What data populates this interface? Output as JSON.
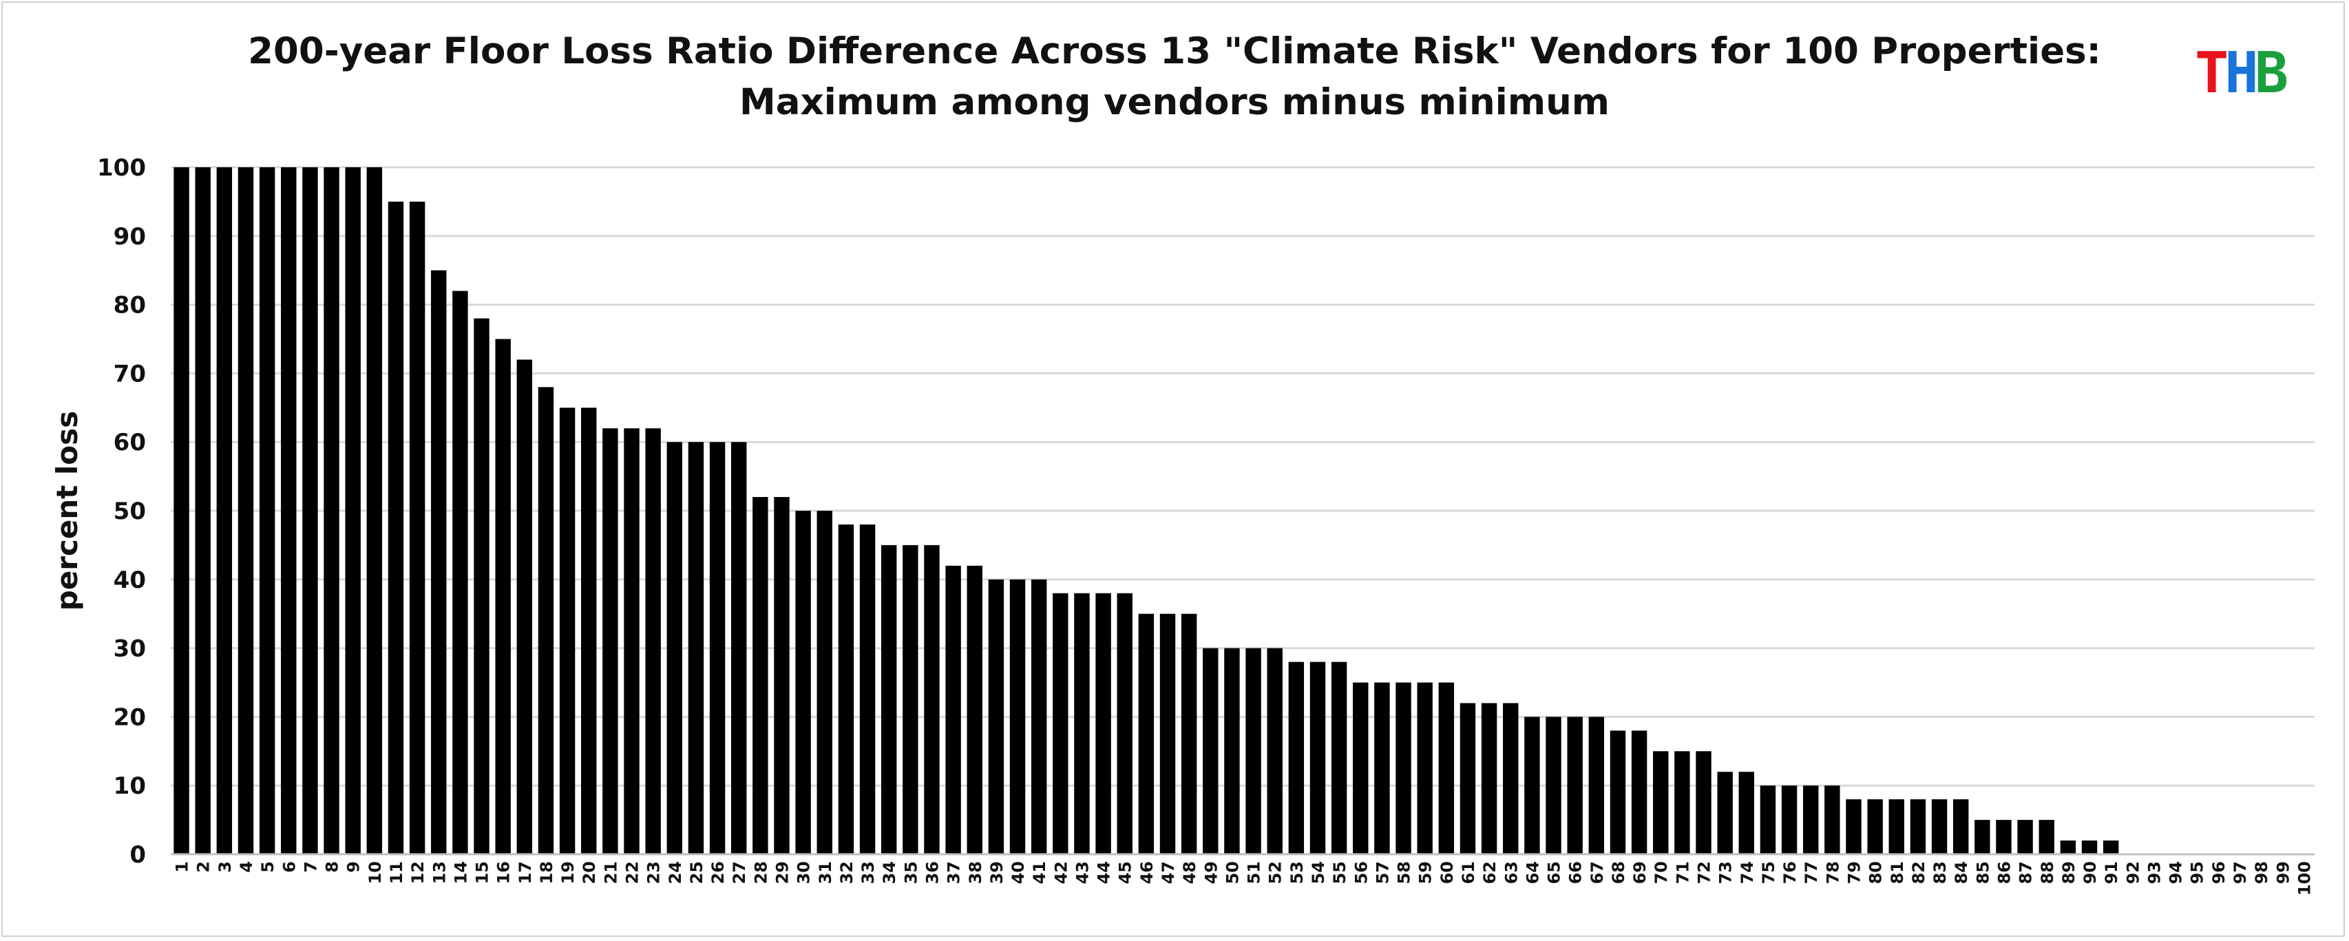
{
  "chart_data": {
    "type": "bar",
    "title": "200-year Floor Loss Ratio Difference Across 13 \"Climate Risk\" Vendors for 100 Properties:",
    "subtitle": "Maximum among vendors minus minimum",
    "xlabel": "",
    "ylabel": "percent loss",
    "ylim": [
      0,
      100
    ],
    "yticks": [
      "0",
      "10",
      "20",
      "30",
      "40",
      "50",
      "60",
      "70",
      "80",
      "90",
      "100"
    ],
    "grid": true,
    "legend": "none",
    "bar_color": "#000000",
    "grid_color": "#d9d9d9",
    "categories": [
      "1",
      "2",
      "3",
      "4",
      "5",
      "6",
      "7",
      "8",
      "9",
      "10",
      "11",
      "12",
      "13",
      "14",
      "15",
      "16",
      "17",
      "18",
      "19",
      "20",
      "21",
      "22",
      "23",
      "24",
      "25",
      "26",
      "27",
      "28",
      "29",
      "30",
      "31",
      "32",
      "33",
      "34",
      "35",
      "36",
      "37",
      "38",
      "39",
      "40",
      "41",
      "42",
      "43",
      "44",
      "45",
      "46",
      "47",
      "48",
      "49",
      "50",
      "51",
      "52",
      "53",
      "54",
      "55",
      "56",
      "57",
      "58",
      "59",
      "60",
      "61",
      "62",
      "63",
      "64",
      "65",
      "66",
      "67",
      "68",
      "69",
      "70",
      "71",
      "72",
      "73",
      "74",
      "75",
      "76",
      "77",
      "78",
      "79",
      "80",
      "81",
      "82",
      "83",
      "84",
      "85",
      "86",
      "87",
      "88",
      "89",
      "90",
      "91",
      "92",
      "93",
      "94",
      "95",
      "96",
      "97",
      "98",
      "99",
      "100"
    ],
    "values": [
      100,
      100,
      100,
      100,
      100,
      100,
      100,
      100,
      100,
      100,
      95,
      95,
      85,
      82,
      78,
      75,
      72,
      68,
      65,
      65,
      62,
      62,
      62,
      60,
      60,
      60,
      60,
      52,
      52,
      50,
      50,
      48,
      48,
      45,
      45,
      45,
      42,
      42,
      40,
      40,
      40,
      38,
      38,
      38,
      38,
      35,
      35,
      35,
      30,
      30,
      30,
      30,
      28,
      28,
      28,
      25,
      25,
      25,
      25,
      25,
      22,
      22,
      22,
      20,
      20,
      20,
      20,
      18,
      18,
      15,
      15,
      15,
      12,
      12,
      10,
      10,
      10,
      10,
      8,
      8,
      8,
      8,
      8,
      8,
      5,
      5,
      5,
      5,
      2,
      2,
      2,
      0,
      0,
      0,
      0,
      0,
      0,
      0,
      0,
      0
    ]
  },
  "logo": {
    "letters": [
      {
        "char": "T",
        "color": "#e8141b"
      },
      {
        "char": "H",
        "color": "#1a73d9"
      },
      {
        "char": "B",
        "color": "#19a03c"
      }
    ]
  }
}
